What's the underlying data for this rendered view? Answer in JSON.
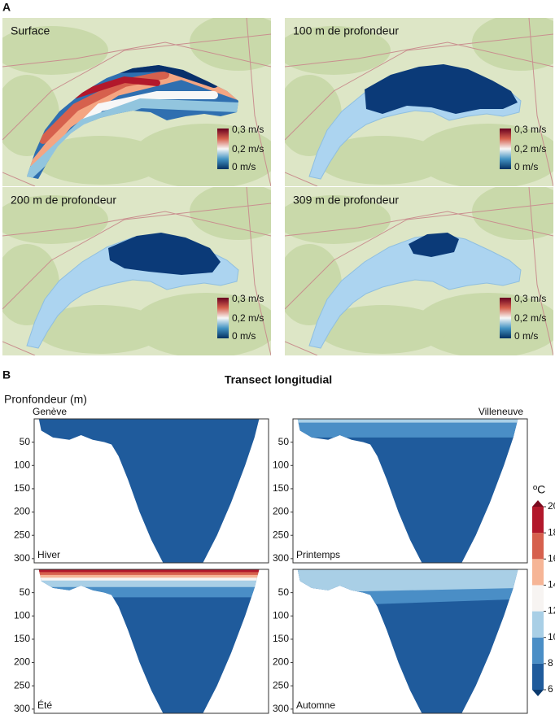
{
  "panel_a": {
    "label": "A",
    "maps": [
      {
        "title": "Surface"
      },
      {
        "title": "100 m de profondeur"
      },
      {
        "title": "200 m de profondeur"
      },
      {
        "title": "309 m de profondeur"
      }
    ],
    "colorbar_labels": [
      "0,3 m/s",
      "0,2 m/s",
      "0 m/s"
    ]
  },
  "panel_b": {
    "label": "B",
    "title": "Transect longitudial",
    "y_label": "Pronfondeur (m)",
    "left_end": "Genève",
    "right_end": "Villeneuve",
    "ylim": [
      0,
      309
    ],
    "yticks": [
      50,
      100,
      150,
      200,
      250,
      300
    ],
    "seasons": [
      "Hiver",
      "Printemps",
      "Été",
      "Automne"
    ],
    "colorbar": {
      "unit": "ºC",
      "ticks": [
        6,
        8,
        10,
        12,
        14,
        16,
        18,
        20
      ],
      "colors": [
        "#1f5b9c",
        "#4a8ec6",
        "#a9cfe6",
        "#f7f4f2",
        "#f6b596",
        "#d6604d",
        "#b2182b"
      ],
      "under_color": "#0b3a6e",
      "over_color": "#7a0a1e"
    }
  }
}
